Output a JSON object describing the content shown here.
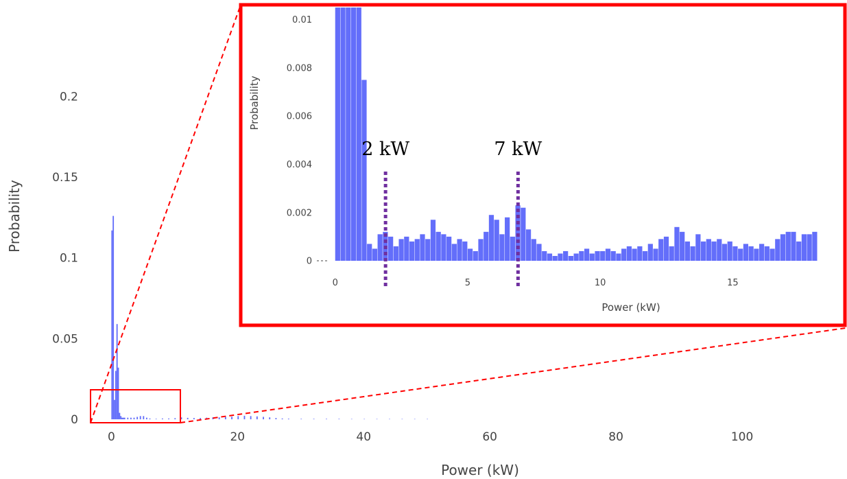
{
  "colors": {
    "bar": "#636efa",
    "zoom_box": "#ff0000",
    "marker_line": "#7030a0",
    "tick_text": "#444444"
  },
  "chart_data": [
    {
      "type": "bar",
      "name": "main",
      "xlabel": "Power (kW)",
      "ylabel": "Probability",
      "xlim": [
        -2,
        110
      ],
      "ylim": [
        0,
        0.23
      ],
      "x_ticks": [
        0,
        20,
        40,
        60,
        80,
        100
      ],
      "y_ticks": [
        0,
        0.05,
        0.1,
        0.15,
        0.2
      ],
      "y_tick_labels": [
        "0",
        "0.05",
        "0.1",
        "0.15",
        "0.2"
      ],
      "bin_width": 0.2,
      "x": [
        0.0,
        0.2,
        0.4,
        0.6,
        0.8,
        1.0,
        1.2,
        1.4,
        1.6,
        1.8,
        2.0,
        2.5,
        3.0,
        3.5,
        4.0,
        4.5,
        5.0,
        5.5,
        6.0,
        7.0,
        8.0,
        9.0,
        10.0,
        11.0,
        12.0,
        13.0,
        14.0,
        15.0,
        16.0,
        17.0,
        18.0,
        19.0,
        20.0,
        21.0,
        22.0,
        23.0,
        24.0,
        25.0,
        26.0,
        27.0,
        28.0,
        30.0,
        32.0,
        34.0,
        36.0,
        38.0,
        40.0,
        42.0,
        44.0,
        46.0,
        48.0,
        50.0
      ],
      "values": [
        0.117,
        0.126,
        0.012,
        0.03,
        0.059,
        0.032,
        0.004,
        0.002,
        0.001,
        0.001,
        0.001,
        0.001,
        0.001,
        0.001,
        0.0015,
        0.002,
        0.002,
        0.001,
        0.0005,
        0.0003,
        0.0005,
        0.0005,
        0.0007,
        0.0012,
        0.0009,
        0.0008,
        0.0008,
        0.001,
        0.0012,
        0.0012,
        0.0015,
        0.0016,
        0.002,
        0.0022,
        0.002,
        0.0018,
        0.0015,
        0.0012,
        0.0008,
        0.0005,
        0.0004,
        0.0003,
        0.0003,
        0.0003,
        0.0003,
        0.0002,
        0.0002,
        0.0002,
        0.0002,
        0.0002,
        0.0002,
        0.0002
      ]
    },
    {
      "type": "bar",
      "name": "inset",
      "xlabel": "Power (kW)",
      "ylabel": "Probability",
      "xlim": [
        -0.2,
        18.2
      ],
      "ylim": [
        0,
        0.0105
      ],
      "x_ticks": [
        0,
        5,
        10,
        15
      ],
      "y_ticks": [
        0,
        0.002,
        0.004,
        0.006,
        0.008,
        0.01
      ],
      "y_tick_labels": [
        "0",
        "0.002",
        "0.004",
        "0.006",
        "0.008",
        "0.01"
      ],
      "bin_width": 0.2,
      "x": [
        0.0,
        0.2,
        0.4,
        0.6,
        0.8,
        1.0,
        1.2,
        1.4,
        1.6,
        1.8,
        2.0,
        2.2,
        2.4,
        2.6,
        2.8,
        3.0,
        3.2,
        3.4,
        3.6,
        3.8,
        4.0,
        4.2,
        4.4,
        4.6,
        4.8,
        5.0,
        5.2,
        5.4,
        5.6,
        5.8,
        6.0,
        6.2,
        6.4,
        6.6,
        6.8,
        7.0,
        7.2,
        7.4,
        7.6,
        7.8,
        8.0,
        8.2,
        8.4,
        8.6,
        8.8,
        9.0,
        9.2,
        9.4,
        9.6,
        9.8,
        10.0,
        10.2,
        10.4,
        10.6,
        10.8,
        11.0,
        11.2,
        11.4,
        11.6,
        11.8,
        12.0,
        12.2,
        12.4,
        12.6,
        12.8,
        13.0,
        13.2,
        13.4,
        13.6,
        13.8,
        14.0,
        14.2,
        14.4,
        14.6,
        14.8,
        15.0,
        15.2,
        15.4,
        15.6,
        15.8,
        16.0,
        16.2,
        16.4,
        16.6,
        16.8,
        17.0,
        17.2,
        17.4,
        17.6,
        17.8,
        18.0
      ],
      "values": [
        0.0105,
        0.0105,
        0.0105,
        0.0105,
        0.0105,
        0.0075,
        0.0007,
        0.0005,
        0.0011,
        0.0012,
        0.001,
        0.0006,
        0.0009,
        0.001,
        0.0008,
        0.0009,
        0.0011,
        0.0009,
        0.0017,
        0.0012,
        0.0011,
        0.001,
        0.0007,
        0.0009,
        0.0008,
        0.0005,
        0.0004,
        0.0009,
        0.0012,
        0.0019,
        0.0017,
        0.0011,
        0.0018,
        0.001,
        0.0023,
        0.0022,
        0.0013,
        0.0009,
        0.0007,
        0.0004,
        0.0003,
        0.0002,
        0.0003,
        0.0004,
        0.0002,
        0.0003,
        0.0004,
        0.0005,
        0.0003,
        0.0004,
        0.0004,
        0.0005,
        0.0004,
        0.0003,
        0.0005,
        0.0006,
        0.0005,
        0.0006,
        0.0004,
        0.0007,
        0.0005,
        0.0009,
        0.001,
        0.0006,
        0.0014,
        0.0012,
        0.0008,
        0.0006,
        0.0011,
        0.0008,
        0.0009,
        0.0008,
        0.0009,
        0.0007,
        0.0008,
        0.0006,
        0.0005,
        0.0007,
        0.0006,
        0.0005,
        0.0007,
        0.0006,
        0.0005,
        0.0009,
        0.0011,
        0.0012,
        0.0012,
        0.0008,
        0.0011,
        0.0011,
        0.0012
      ],
      "annotations": [
        {
          "text": "2 kW",
          "x": 1.8
        },
        {
          "text": "7 kW",
          "x": 6.8
        }
      ]
    }
  ]
}
